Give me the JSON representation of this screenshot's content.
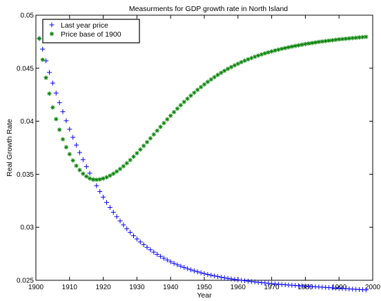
{
  "chart_data": {
    "type": "scatter",
    "title": "Measurments for GDP growth rate in North Island",
    "xlabel": "Year",
    "ylabel": "Real Growth Rate",
    "xlim": [
      1900,
      2000
    ],
    "ylim": [
      0.025,
      0.05
    ],
    "xticks": [
      1900,
      1910,
      1920,
      1930,
      1940,
      1950,
      1960,
      1970,
      1980,
      1990,
      2000
    ],
    "yticks": [
      0.025,
      0.03,
      0.035,
      0.04,
      0.045,
      0.05
    ],
    "xtick_labels": [
      "1900",
      "1910",
      "1920",
      "1930",
      "1940",
      "1950",
      "1960",
      "1970",
      "1980",
      "1990",
      "2000"
    ],
    "ytick_labels": [
      "0.025",
      "0.03",
      "0.035",
      "0.04",
      "0.045",
      "0.05"
    ],
    "grid": false,
    "legend_position": "top-left",
    "x": [
      1901,
      1902,
      1903,
      1904,
      1905,
      1906,
      1907,
      1908,
      1909,
      1910,
      1911,
      1912,
      1913,
      1914,
      1915,
      1916,
      1917,
      1918,
      1919,
      1920,
      1921,
      1922,
      1923,
      1924,
      1925,
      1926,
      1927,
      1928,
      1929,
      1930,
      1931,
      1932,
      1933,
      1934,
      1935,
      1936,
      1937,
      1938,
      1939,
      1940,
      1941,
      1942,
      1943,
      1944,
      1945,
      1946,
      1947,
      1948,
      1949,
      1950,
      1951,
      1952,
      1953,
      1954,
      1955,
      1956,
      1957,
      1958,
      1959,
      1960,
      1961,
      1962,
      1963,
      1964,
      1965,
      1966,
      1967,
      1968,
      1969,
      1970,
      1971,
      1972,
      1973,
      1974,
      1975,
      1976,
      1977,
      1978,
      1979,
      1980,
      1981,
      1982,
      1983,
      1984,
      1985,
      1986,
      1987,
      1988,
      1989,
      1990,
      1991,
      1992,
      1993,
      1994,
      1995,
      1996,
      1997,
      1998
    ],
    "series": [
      {
        "name": "Last year price",
        "marker": "plus",
        "color": "#0000ff",
        "values": [
          0.0478,
          0.0468,
          0.0457,
          0.0446,
          0.0436,
          0.04265,
          0.04175,
          0.0409,
          0.04005,
          0.03925,
          0.03848,
          0.03775,
          0.03705,
          0.03638,
          0.03572,
          0.0351,
          0.0345,
          0.03392,
          0.03337,
          0.03284,
          0.03234,
          0.03187,
          0.03142,
          0.031,
          0.0306,
          0.03022,
          0.02986,
          0.02952,
          0.0292,
          0.0289,
          0.02862,
          0.02836,
          0.02811,
          0.02788,
          0.02766,
          0.02745,
          0.02726,
          0.02708,
          0.02691,
          0.02675,
          0.0266,
          0.02646,
          0.02633,
          0.02621,
          0.0261,
          0.02599,
          0.02589,
          0.0258,
          0.02571,
          0.02563,
          0.02555,
          0.02548,
          0.02541,
          0.02535,
          0.02529,
          0.02523,
          0.02518,
          0.02513,
          0.02508,
          0.02504,
          0.025,
          0.02496,
          0.02492,
          0.02488,
          0.02485,
          0.02481,
          0.02478,
          0.02475,
          0.02472,
          0.02469,
          0.02466,
          0.02463,
          0.0246,
          0.02458,
          0.02455,
          0.02453,
          0.02451,
          0.02449,
          0.02447,
          0.02445,
          0.02443,
          0.02441,
          0.02439,
          0.02437,
          0.02435,
          0.02433,
          0.02431,
          0.02429,
          0.02427,
          0.02425,
          0.02423,
          0.02421,
          0.02419,
          0.02417,
          0.02415,
          0.02413,
          0.02411,
          0.02409
        ]
      },
      {
        "name": "Price base of 1900",
        "marker": "asterisk",
        "color": "#008000",
        "values": [
          0.0478,
          0.0458,
          0.0441,
          0.0426,
          0.0413,
          0.0402,
          0.0392,
          0.0383,
          0.03755,
          0.0369,
          0.0363,
          0.0358,
          0.0354,
          0.03505,
          0.0348,
          0.0346,
          0.0345,
          0.03448,
          0.03452,
          0.0346,
          0.03472,
          0.03487,
          0.03505,
          0.03526,
          0.0355,
          0.03576,
          0.03604,
          0.03634,
          0.03666,
          0.03699,
          0.03733,
          0.03768,
          0.03803,
          0.03839,
          0.03875,
          0.03911,
          0.03947,
          0.03983,
          0.04018,
          0.04052,
          0.04086,
          0.04119,
          0.04151,
          0.04182,
          0.04212,
          0.04241,
          0.04269,
          0.04296,
          0.04322,
          0.04347,
          0.04371,
          0.04394,
          0.04416,
          0.04437,
          0.04457,
          0.04476,
          0.04494,
          0.04511,
          0.04527,
          0.04542,
          0.04557,
          0.04571,
          0.04584,
          0.04596,
          0.04608,
          0.04619,
          0.0463,
          0.0464,
          0.04649,
          0.04658,
          0.04667,
          0.04675,
          0.04683,
          0.0469,
          0.04697,
          0.04704,
          0.0471,
          0.04716,
          0.04722,
          0.04728,
          0.04733,
          0.04738,
          0.04743,
          0.04748,
          0.04752,
          0.04756,
          0.0476,
          0.04764,
          0.04768,
          0.04772,
          0.04775,
          0.04778,
          0.04781,
          0.04784,
          0.04787,
          0.0479,
          0.04793,
          0.04796
        ]
      }
    ]
  }
}
